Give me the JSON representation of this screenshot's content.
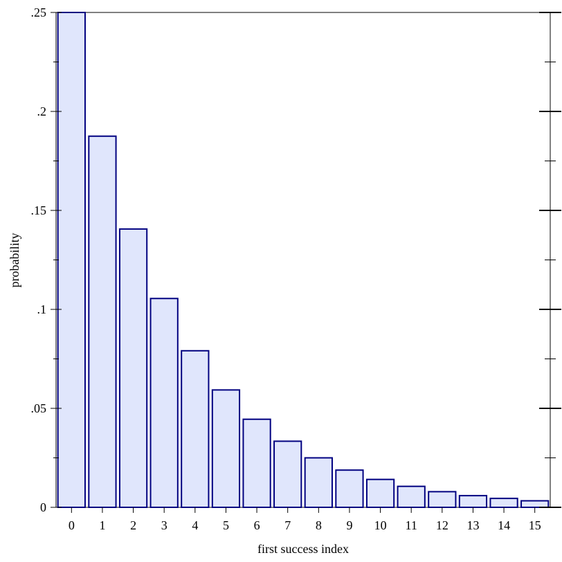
{
  "chart_data": {
    "type": "bar",
    "categories": [
      "0",
      "1",
      "2",
      "3",
      "4",
      "5",
      "6",
      "7",
      "8",
      "9",
      "10",
      "11",
      "12",
      "13",
      "14",
      "15"
    ],
    "values": [
      0.25,
      0.1875,
      0.1406,
      0.1055,
      0.0791,
      0.0593,
      0.0445,
      0.0334,
      0.025,
      0.0188,
      0.0141,
      0.0106,
      0.0079,
      0.0059,
      0.0045,
      0.0033
    ],
    "xlabel": "first success index",
    "ylabel": "probability",
    "ylim": [
      0,
      0.25
    ],
    "yticks": [
      0,
      0.05,
      0.1,
      0.15,
      0.2,
      0.25
    ],
    "ytick_labels": [
      "0",
      ".05",
      ".1",
      ".15",
      ".2",
      ".25"
    ],
    "grid": false,
    "colors": {
      "bar_fill": "#e0e6fc",
      "bar_stroke": "#000080",
      "axis": "#000000"
    }
  }
}
